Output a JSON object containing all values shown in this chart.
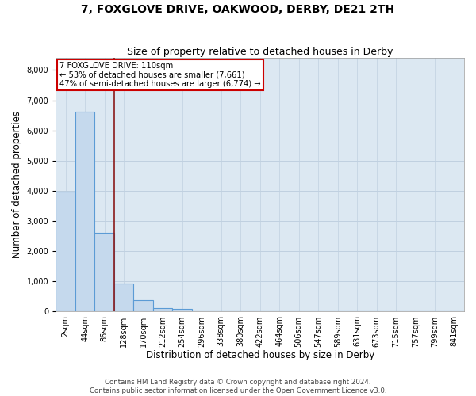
{
  "title": "7, FOXGLOVE DRIVE, OAKWOOD, DERBY, DE21 2TH",
  "subtitle": "Size of property relative to detached houses in Derby",
  "xlabel": "Distribution of detached houses by size in Derby",
  "ylabel": "Number of detached properties",
  "bin_labels": [
    "2sqm",
    "44sqm",
    "86sqm",
    "128sqm",
    "170sqm",
    "212sqm",
    "254sqm",
    "296sqm",
    "338sqm",
    "380sqm",
    "422sqm",
    "464sqm",
    "506sqm",
    "547sqm",
    "589sqm",
    "631sqm",
    "673sqm",
    "715sqm",
    "757sqm",
    "799sqm",
    "841sqm"
  ],
  "bar_heights": [
    3980,
    6620,
    2600,
    920,
    380,
    130,
    80,
    0,
    0,
    0,
    0,
    0,
    0,
    0,
    0,
    0,
    0,
    0,
    0,
    0,
    0
  ],
  "bar_color": "#c5d9ed",
  "bar_edge_color": "#5b9bd5",
  "property_line_x": 2.5,
  "property_line_color": "#8b1a1a",
  "annotation_text": "7 FOXGLOVE DRIVE: 110sqm\n← 53% of detached houses are smaller (7,661)\n47% of semi-detached houses are larger (6,774) →",
  "annotation_box_color": "#cc0000",
  "ylim": [
    0,
    8400
  ],
  "yticks": [
    0,
    1000,
    2000,
    3000,
    4000,
    5000,
    6000,
    7000,
    8000
  ],
  "grid_color": "#c0d0e0",
  "bg_color": "#dce8f2",
  "footer_text": "Contains HM Land Registry data © Crown copyright and database right 2024.\nContains public sector information licensed under the Open Government Licence v3.0.",
  "title_fontsize": 10,
  "subtitle_fontsize": 9,
  "axis_label_fontsize": 8.5,
  "tick_fontsize": 7
}
